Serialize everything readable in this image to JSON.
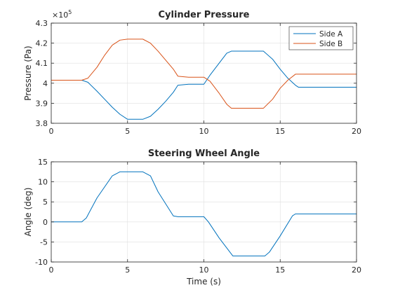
{
  "chart_data": [
    {
      "type": "line",
      "title": "Cylinder Pressure",
      "xlabel": "",
      "ylabel": "Pressure (Pa)",
      "exponent_base": "×10",
      "exponent_power": "5",
      "xlim": [
        0,
        20
      ],
      "ylim": [
        3.8,
        4.3
      ],
      "xticks": [
        0,
        5,
        10,
        15,
        20
      ],
      "xtick_labels": [
        "0",
        "5",
        "10",
        "15",
        "20"
      ],
      "yticks": [
        3.8,
        3.9,
        4.0,
        4.1,
        4.2,
        4.3
      ],
      "ytick_labels": [
        "3.8",
        "3.9",
        "4",
        "4.1",
        "4.2",
        "4.3"
      ],
      "grid": true,
      "legend_position": "top-right",
      "series": [
        {
          "name": "Side A",
          "color": "#0072BD",
          "x": [
            0,
            2.0,
            2.4,
            3.0,
            3.5,
            4.0,
            4.5,
            5.0,
            5.5,
            6.0,
            6.5,
            7.0,
            7.5,
            8.0,
            8.3,
            9.0,
            10.0,
            10.4,
            11.0,
            11.5,
            11.8,
            13.0,
            13.9,
            14.5,
            15.0,
            15.5,
            16.0,
            16.2,
            20.0
          ],
          "y": [
            4.015,
            4.015,
            4.005,
            3.96,
            3.92,
            3.88,
            3.845,
            3.82,
            3.82,
            3.82,
            3.835,
            3.87,
            3.91,
            3.955,
            3.99,
            3.995,
            3.995,
            4.04,
            4.1,
            4.15,
            4.16,
            4.16,
            4.16,
            4.12,
            4.07,
            4.025,
            3.99,
            3.98,
            3.98
          ]
        },
        {
          "name": "Side B",
          "color": "#D95319",
          "x": [
            0,
            2.0,
            2.4,
            3.0,
            3.5,
            4.0,
            4.5,
            5.0,
            5.5,
            6.0,
            6.5,
            7.0,
            7.5,
            8.0,
            8.3,
            9.0,
            10.0,
            10.4,
            11.0,
            11.5,
            11.8,
            13.0,
            13.9,
            14.5,
            15.0,
            15.5,
            16.0,
            16.2,
            20.0
          ],
          "y": [
            4.015,
            4.015,
            4.025,
            4.08,
            4.14,
            4.19,
            4.215,
            4.22,
            4.22,
            4.22,
            4.2,
            4.16,
            4.115,
            4.07,
            4.035,
            4.03,
            4.03,
            4.01,
            3.95,
            3.895,
            3.875,
            3.875,
            3.875,
            3.92,
            3.975,
            4.015,
            4.045,
            4.045,
            4.045
          ]
        }
      ]
    },
    {
      "type": "line",
      "title": "Steering Wheel Angle",
      "xlabel": "Time (s)",
      "ylabel": "Angle (deg)",
      "xlim": [
        0,
        20
      ],
      "ylim": [
        -10,
        15
      ],
      "xticks": [
        0,
        5,
        10,
        15,
        20
      ],
      "xtick_labels": [
        "0",
        "5",
        "10",
        "15",
        "20"
      ],
      "yticks": [
        -10,
        -5,
        0,
        5,
        10,
        15
      ],
      "ytick_labels": [
        "-10",
        "-5",
        "0",
        "5",
        "10",
        "15"
      ],
      "grid": true,
      "series": [
        {
          "color": "#0072BD",
          "x": [
            0,
            2.0,
            2.3,
            3.0,
            4.0,
            4.5,
            6.0,
            6.5,
            7.0,
            8.0,
            8.3,
            10.0,
            10.3,
            11.0,
            11.9,
            14.0,
            14.3,
            15.0,
            15.8,
            16.0,
            20.0
          ],
          "y": [
            0,
            0,
            1,
            6,
            11.5,
            12.5,
            12.5,
            11.5,
            7.5,
            1.5,
            1.3,
            1.3,
            0,
            -4,
            -8.5,
            -8.5,
            -7.5,
            -3.5,
            1.5,
            2,
            2
          ]
        }
      ]
    }
  ]
}
